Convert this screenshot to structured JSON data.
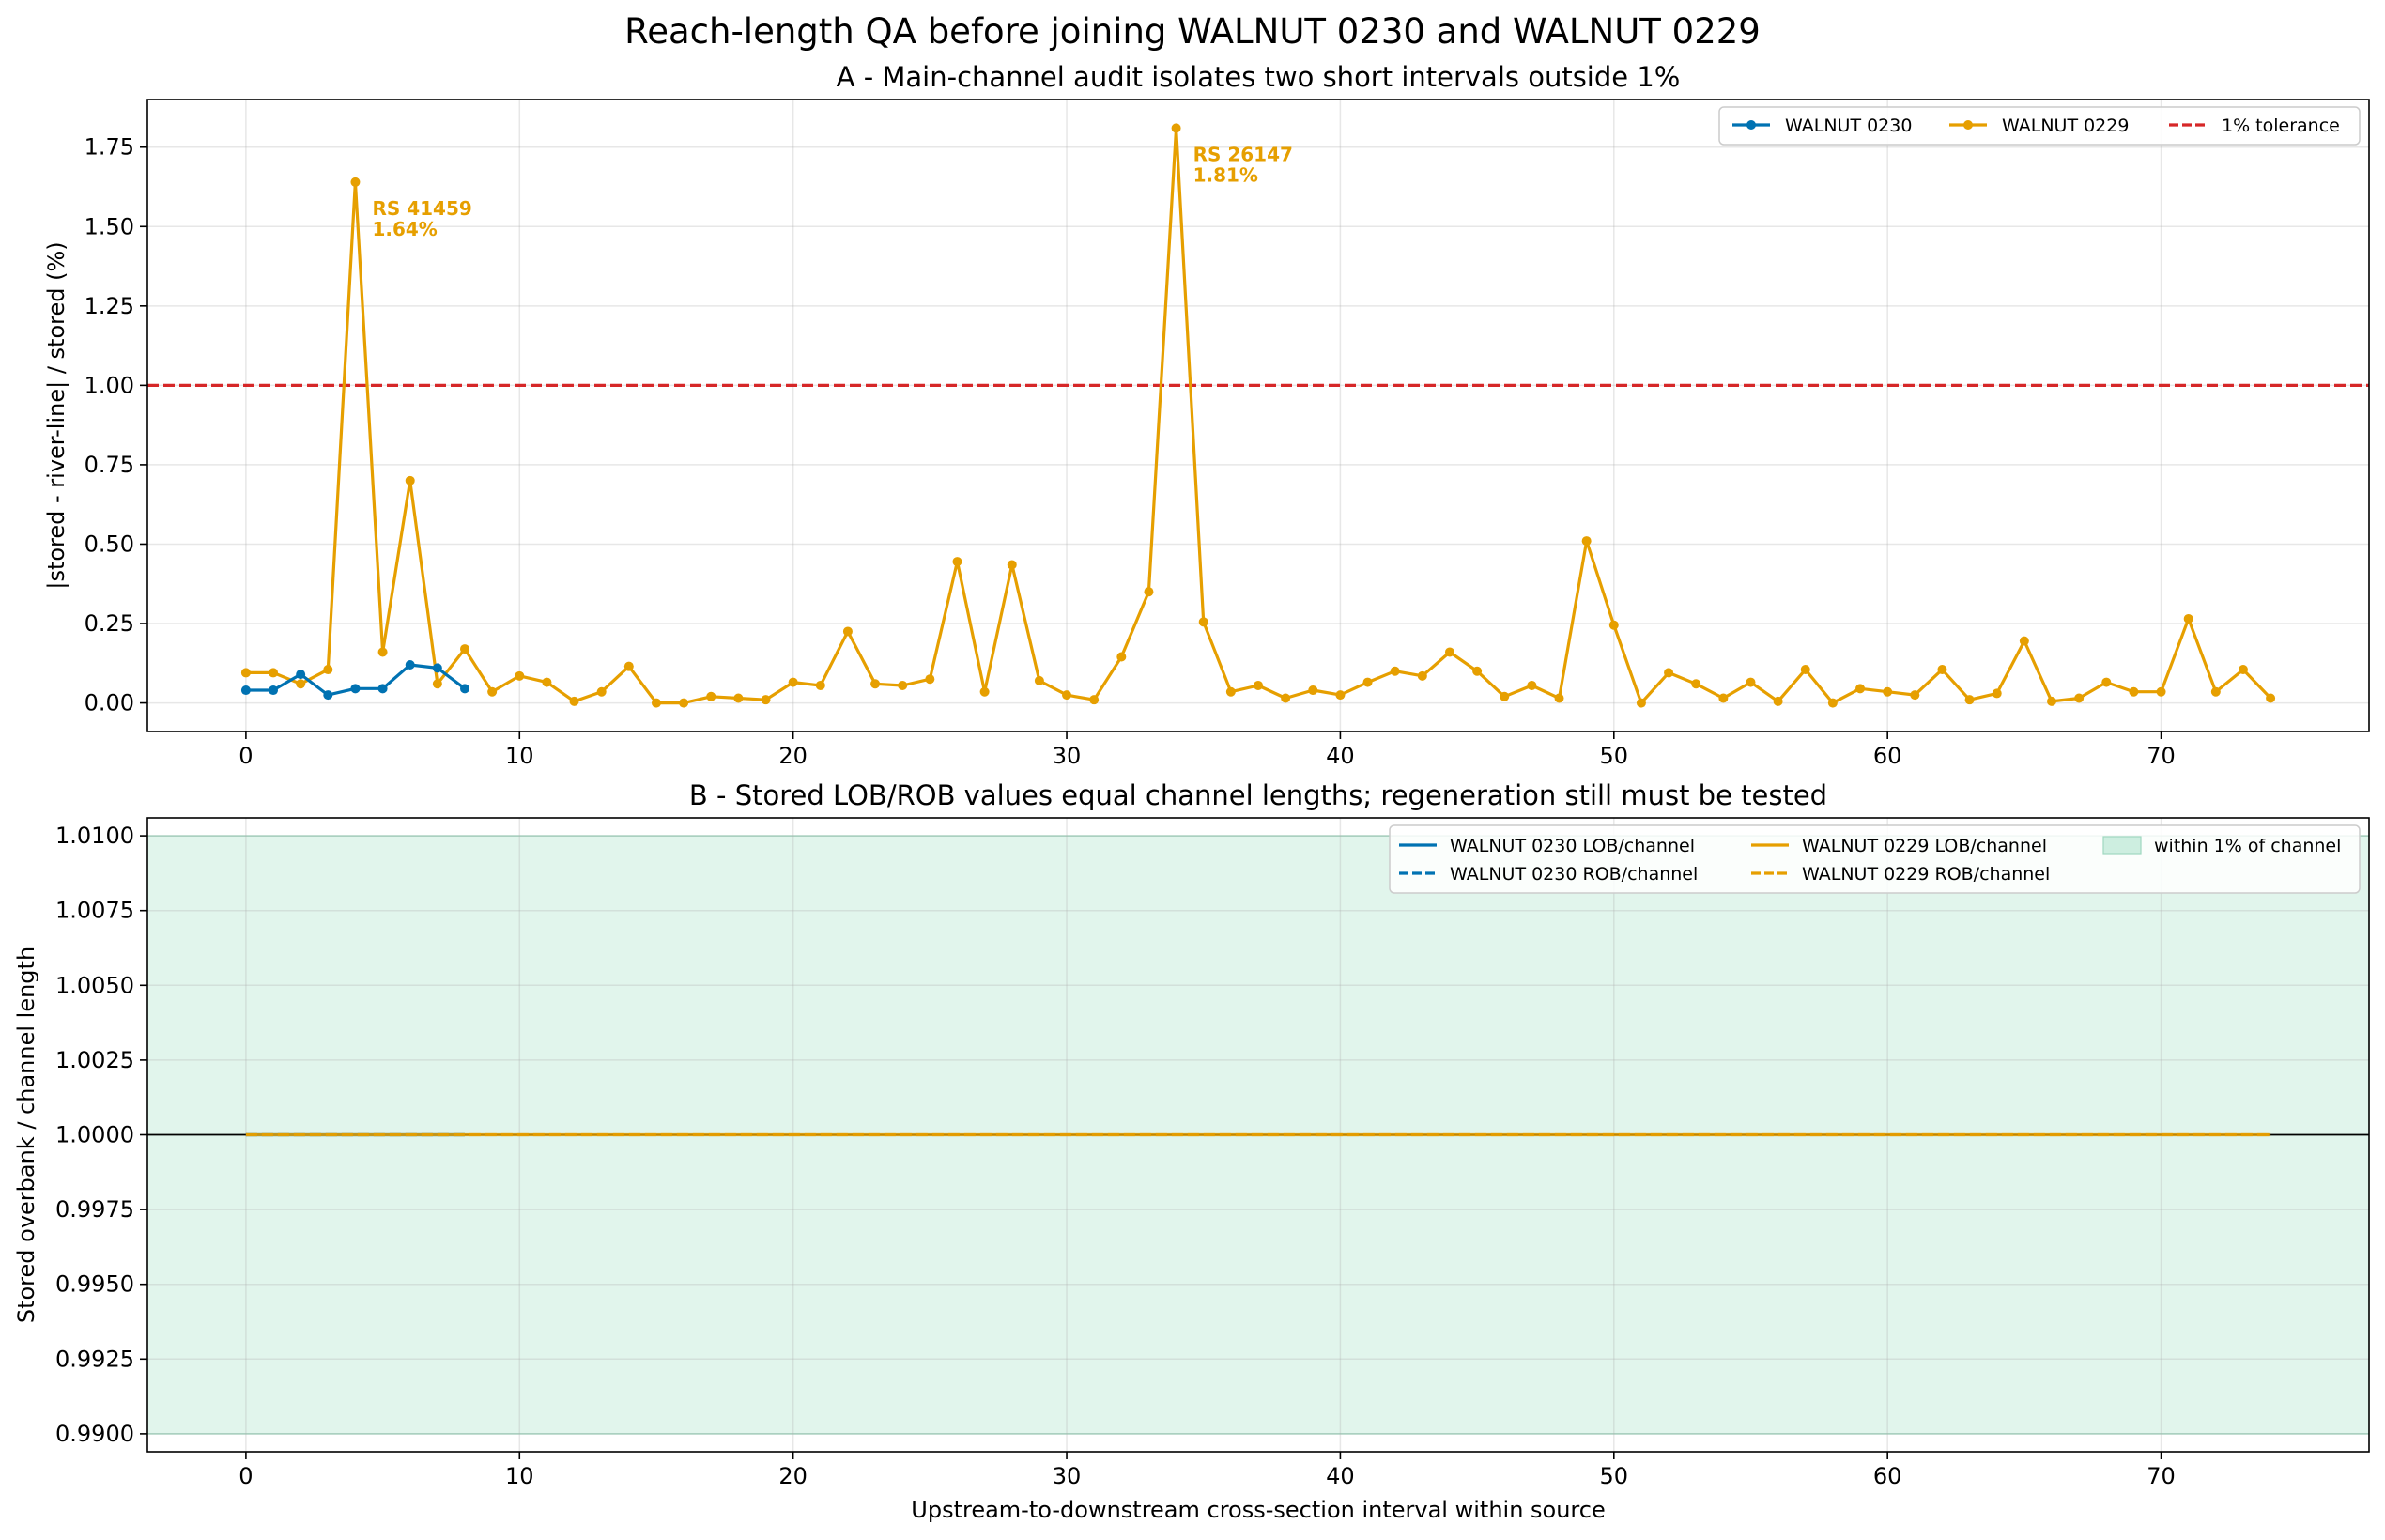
{
  "title": "Reach-length QA before joining WALNUT 0230 and WALNUT 0229",
  "colors": {
    "walnut0230": "#0072b2",
    "walnut0229": "#e69f00",
    "tolerance": "#d62728",
    "band": "#cdeee0"
  },
  "chart_data": [
    {
      "type": "line",
      "title": "A - Main-channel audit isolates two short intervals outside 1%",
      "xlabel": "",
      "ylabel": "|stored - river-line| / stored (%)",
      "xlim": [
        -3.6,
        77.6
      ],
      "ylim": [
        -0.09,
        1.9
      ],
      "xticks": [
        0,
        10,
        20,
        30,
        40,
        50,
        60,
        70
      ],
      "yticks": [
        "0.00",
        "0.25",
        "0.50",
        "0.75",
        "1.00",
        "1.25",
        "1.50",
        "1.75"
      ],
      "grid": true,
      "legend_position": "top-right",
      "legend": [
        "WALNUT 0230",
        "WALNUT 0229",
        "1% tolerance"
      ],
      "tolerance": 1.0,
      "series": [
        {
          "name": "WALNUT 0230",
          "x": [
            0,
            1,
            2,
            3,
            4,
            5,
            6,
            7,
            8
          ],
          "y": [
            0.04,
            0.04,
            0.09,
            0.025,
            0.045,
            0.045,
            0.12,
            0.11,
            0.045
          ]
        },
        {
          "name": "WALNUT 0229",
          "x": [
            0,
            1,
            2,
            3,
            4,
            5,
            6,
            7,
            8,
            9,
            10,
            11,
            12,
            13,
            14,
            15,
            16,
            17,
            18,
            19,
            20,
            21,
            22,
            23,
            24,
            25,
            26,
            27,
            28,
            29,
            30,
            31,
            32,
            33,
            34,
            35,
            36,
            37,
            38,
            39,
            40,
            41,
            42,
            43,
            44,
            45,
            46,
            47,
            48,
            49,
            50,
            51,
            52,
            53,
            54,
            55,
            56,
            57,
            58,
            59,
            60,
            61,
            62,
            63,
            64,
            65,
            66,
            67,
            68,
            69,
            70,
            71,
            72,
            73,
            74
          ],
          "y": [
            0.095,
            0.095,
            0.06,
            0.105,
            1.64,
            0.16,
            0.7,
            0.06,
            0.17,
            0.035,
            0.085,
            0.065,
            0.005,
            0.035,
            0.115,
            0.0,
            0.0,
            0.02,
            0.015,
            0.01,
            0.065,
            0.055,
            0.225,
            0.06,
            0.055,
            0.075,
            0.445,
            0.035,
            0.435,
            0.07,
            0.025,
            0.01,
            0.145,
            0.35,
            1.81,
            0.255,
            0.035,
            0.055,
            0.015,
            0.04,
            0.025,
            0.065,
            0.1,
            0.085,
            0.16,
            0.1,
            0.02,
            0.055,
            0.015,
            0.51,
            0.245,
            0.0,
            0.095,
            0.06,
            0.015,
            0.065,
            0.005,
            0.105,
            0.0,
            0.045,
            0.035,
            0.025,
            0.105,
            0.01,
            0.03,
            0.195,
            0.005,
            0.015,
            0.065,
            0.035,
            0.035,
            0.265,
            0.035,
            0.105,
            0.015
          ]
        }
      ],
      "annotations": [
        {
          "x": 4,
          "y": 1.64,
          "line1": "RS 41459",
          "line2": "1.64%"
        },
        {
          "x": 34,
          "y": 1.81,
          "line1": "RS 26147",
          "line2": "1.81%"
        }
      ]
    },
    {
      "type": "line",
      "title": "B - Stored LOB/ROB values equal channel lengths; regeneration still must be tested",
      "xlabel": "Upstream-to-downstream cross-section interval within source",
      "ylabel": "Stored overbank / channel length",
      "xlim": [
        -3.6,
        77.6
      ],
      "ylim": [
        0.9894,
        1.0106
      ],
      "xticks": [
        0,
        10,
        20,
        30,
        40,
        50,
        60,
        70
      ],
      "yticks": [
        "0.9900",
        "0.9925",
        "0.9950",
        "0.9975",
        "1.0000",
        "1.0025",
        "1.0050",
        "1.0075",
        "1.0100"
      ],
      "grid": true,
      "legend_position": "top-right",
      "legend": [
        "WALNUT 0230 LOB/channel",
        "WALNUT 0230 ROB/channel",
        "WALNUT 0229 LOB/channel",
        "WALNUT 0229 ROB/channel",
        "within 1% of channel"
      ],
      "band": [
        0.99,
        1.01
      ],
      "reference": 1.0,
      "series": [
        {
          "name": "WALNUT 0230 LOB/channel",
          "x_range": [
            0,
            8
          ],
          "value": 1.0
        },
        {
          "name": "WALNUT 0230 ROB/channel",
          "x_range": [
            0,
            8
          ],
          "value": 1.0
        },
        {
          "name": "WALNUT 0229 LOB/channel",
          "x_range": [
            0,
            74
          ],
          "value": 1.0
        },
        {
          "name": "WALNUT 0229 ROB/channel",
          "x_range": [
            0,
            74
          ],
          "value": 1.0
        }
      ]
    }
  ]
}
